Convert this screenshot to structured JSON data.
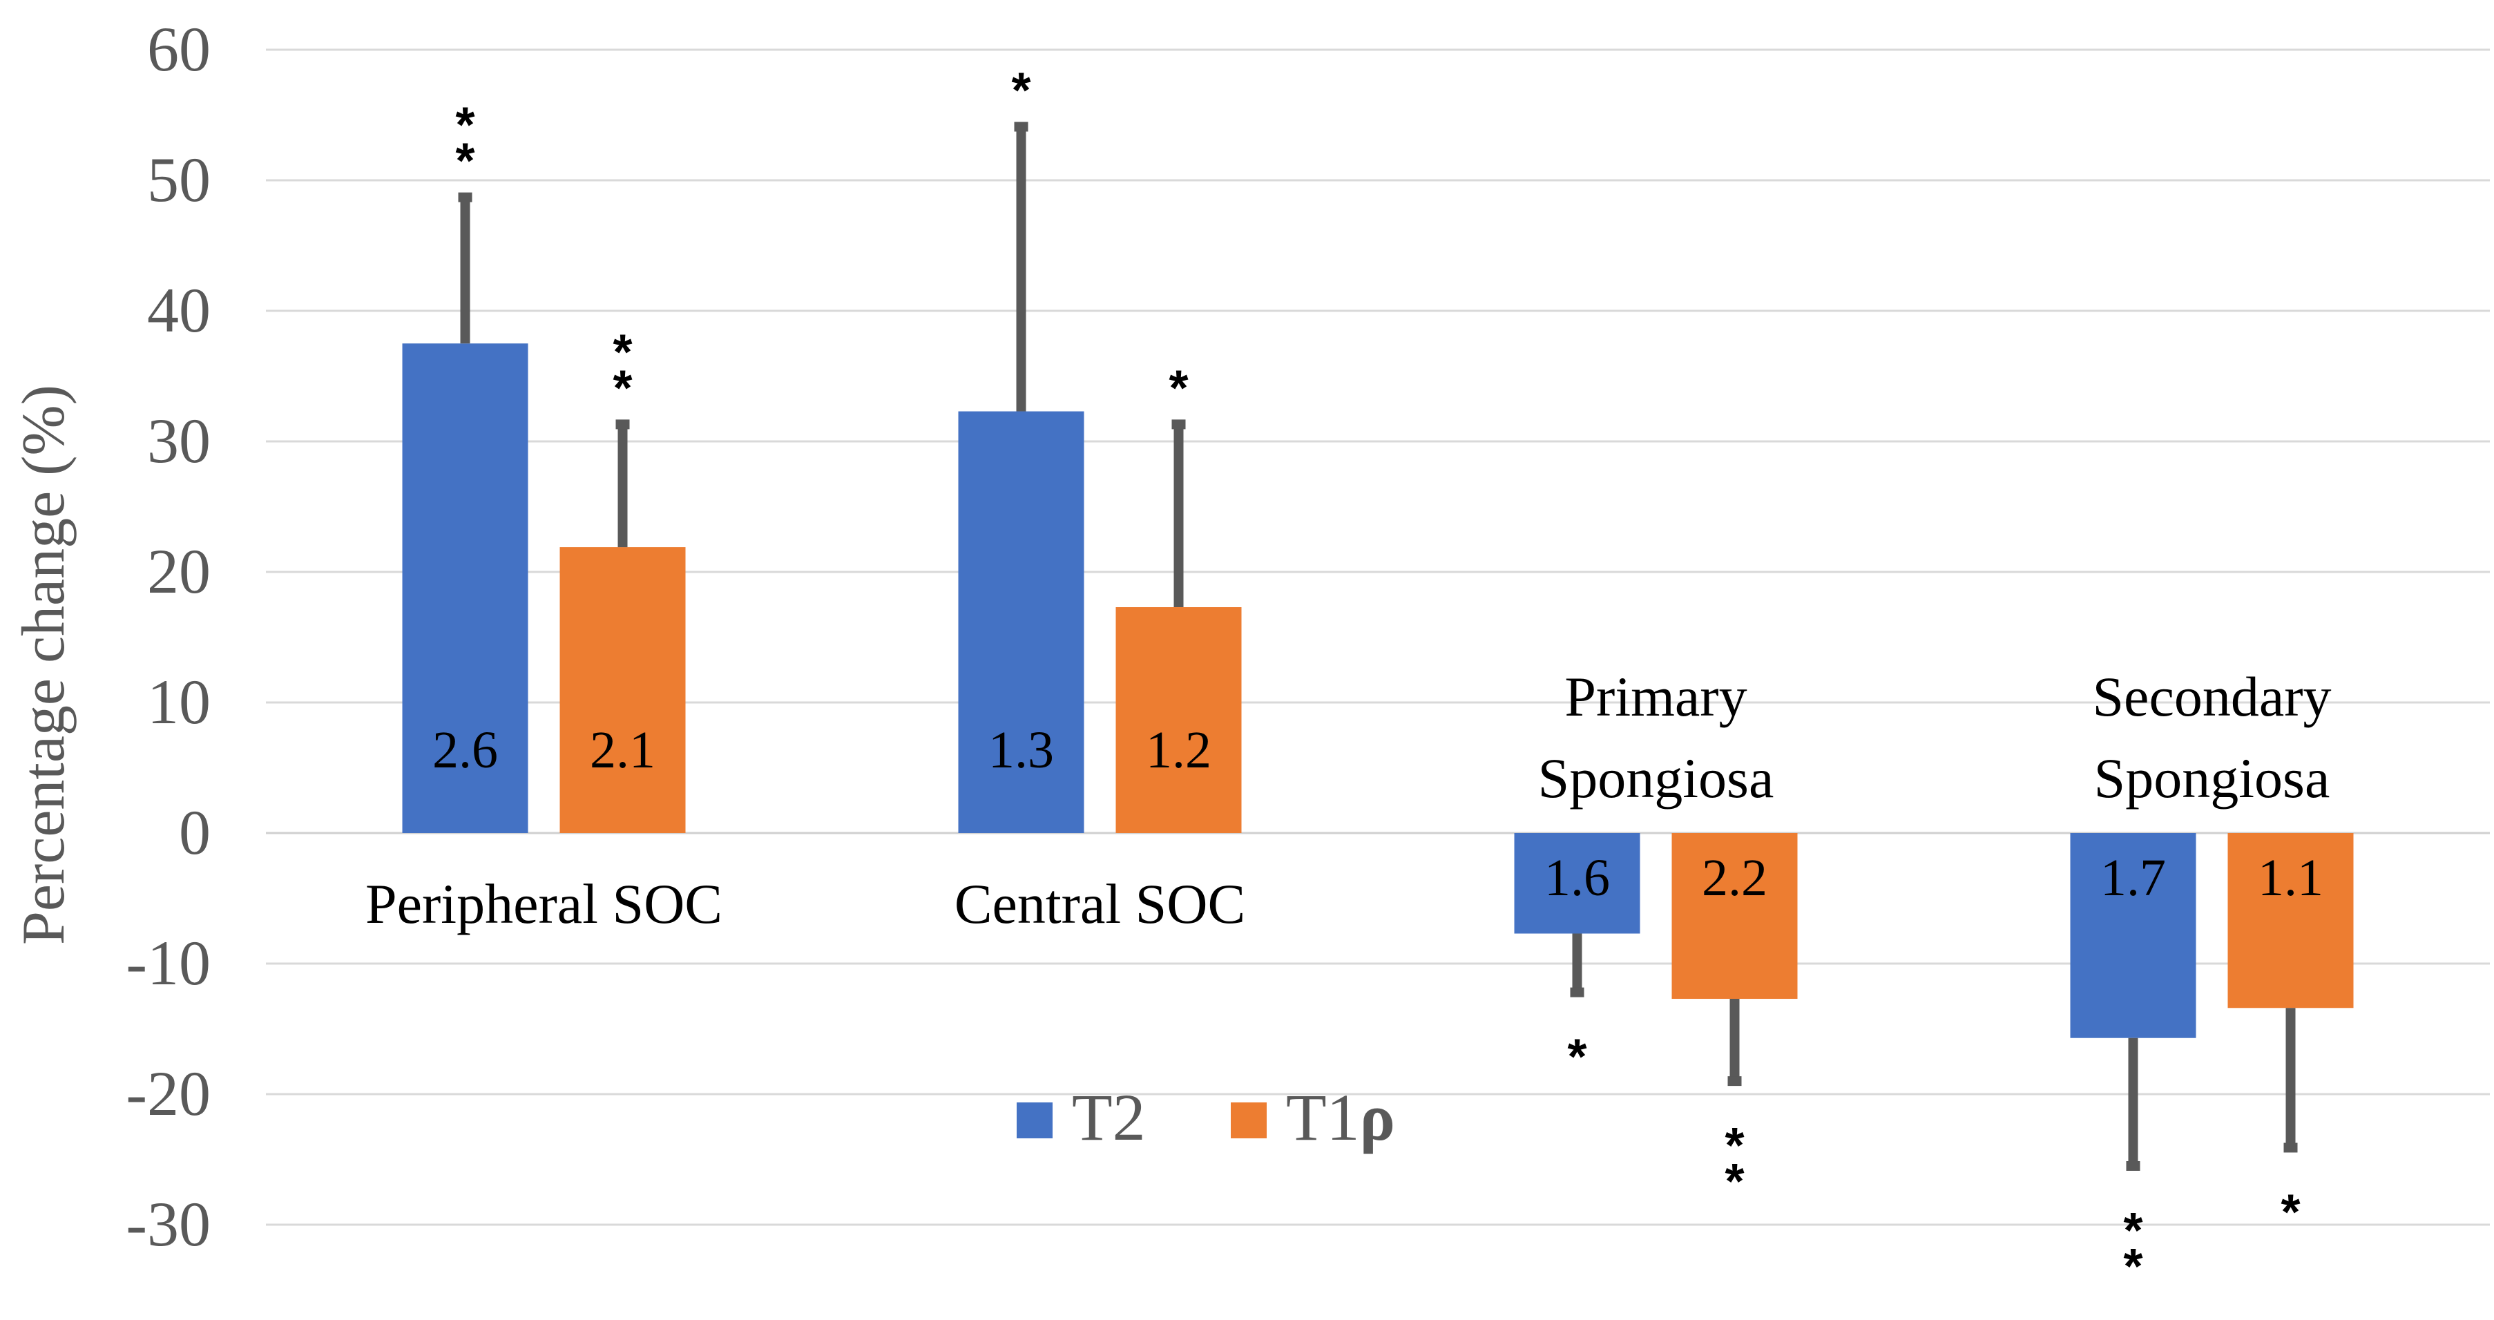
{
  "chart_data": {
    "type": "bar",
    "title": "",
    "xlabel": "",
    "ylabel": "Percentage change (%)",
    "ylim": [
      -30,
      60
    ],
    "yticks": [
      60,
      50,
      40,
      30,
      20,
      10,
      0,
      -10,
      -20,
      -30
    ],
    "grid": true,
    "legend_position": "bottom-center",
    "categories": [
      {
        "lines": [
          "Peripheral SOC"
        ],
        "label_position": "below-axis"
      },
      {
        "lines": [
          "Central SOC"
        ],
        "label_position": "below-axis"
      },
      {
        "lines": [
          "Primary",
          "Spongiosa"
        ],
        "label_position": "above-axis"
      },
      {
        "lines": [
          "Secondary",
          "Spongiosa"
        ],
        "label_position": "above-axis"
      }
    ],
    "series": [
      {
        "name": "T2",
        "name_main": "T2",
        "name_symbol": "",
        "color": "#4472C4",
        "values": [
          37.5,
          32.3,
          -7.7,
          -15.7
        ],
        "error": [
          11.2,
          21.8,
          4.5,
          9.8
        ],
        "labels": [
          "2.6",
          "1.3",
          "1.6",
          "1.7"
        ],
        "significance": [
          "**",
          "*",
          "*",
          "**"
        ]
      },
      {
        "name": "T1ρ",
        "name_main": "T1",
        "name_symbol": "ρ",
        "color": "#ED7D31",
        "values": [
          21.9,
          17.3,
          -12.7,
          -13.4
        ],
        "error": [
          9.4,
          14.0,
          6.3,
          10.7
        ],
        "labels": [
          "2.1",
          "1.2",
          "2.2",
          "1.1"
        ],
        "significance": [
          "**",
          "*",
          "**",
          "*"
        ]
      }
    ]
  }
}
